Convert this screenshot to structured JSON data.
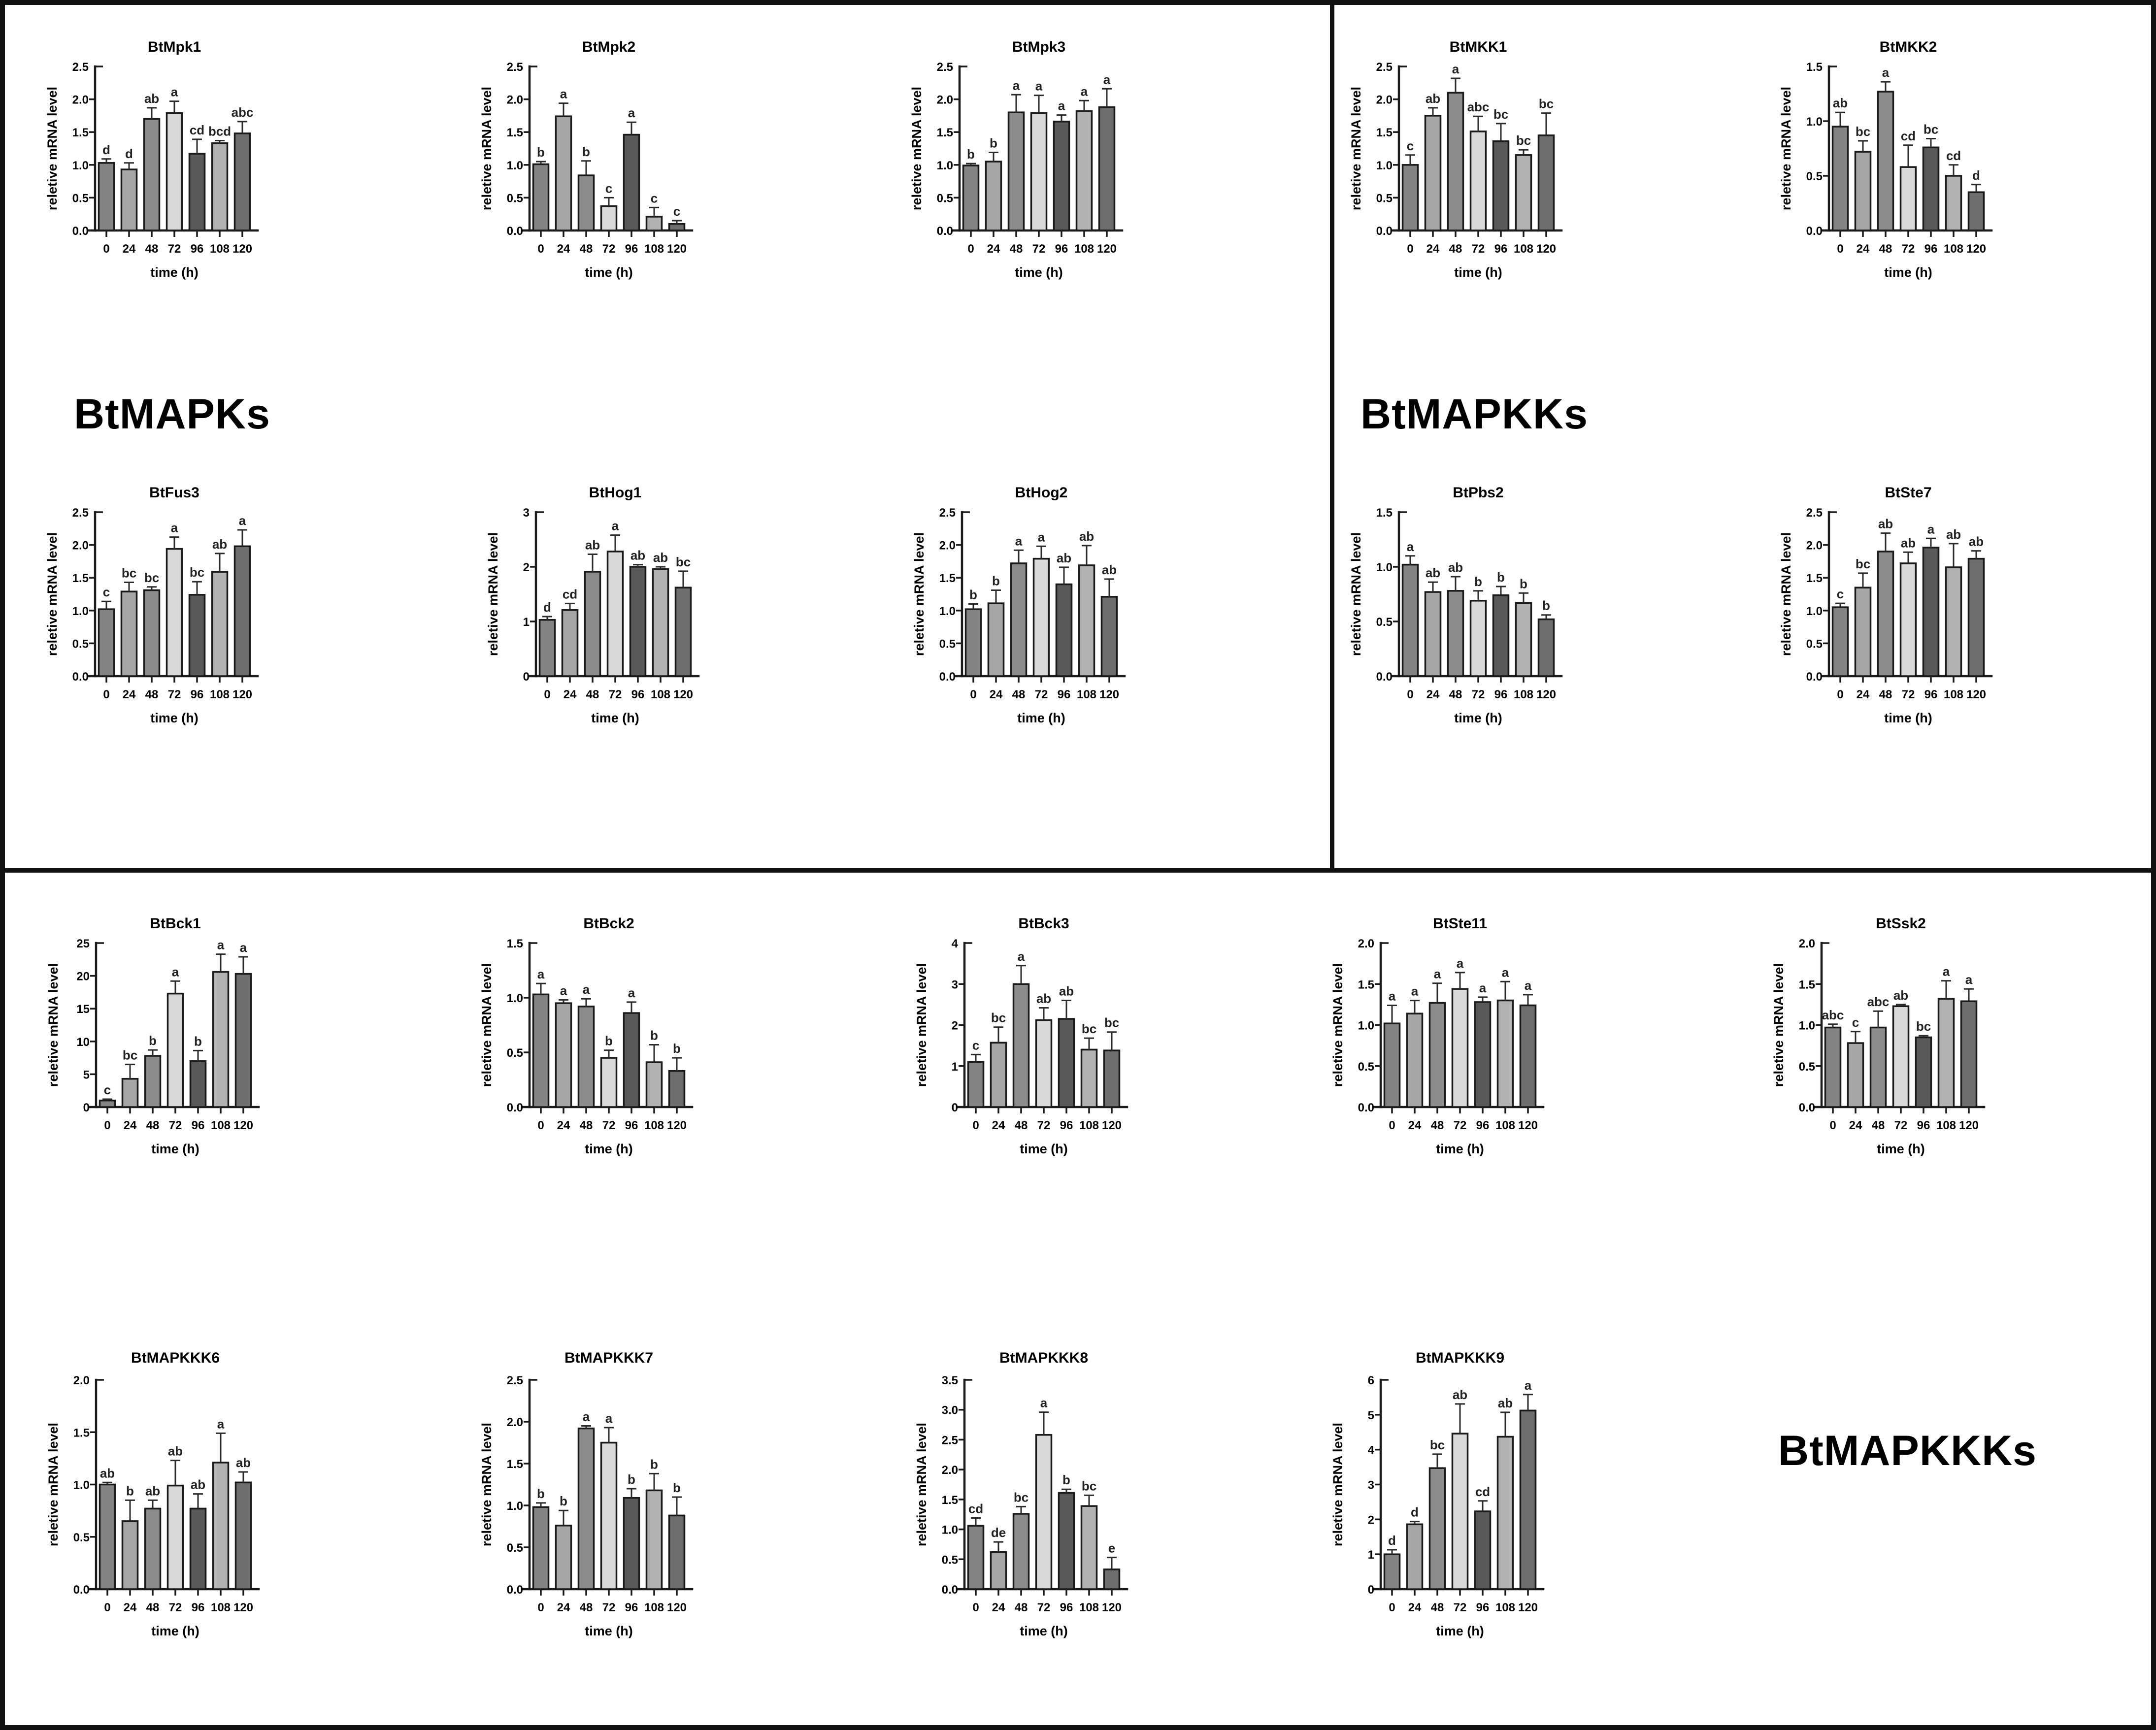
{
  "section_labels": {
    "mapks": "BtMAPKs",
    "mapkks": "BtMAPKKs",
    "mapkkks": "BtMAPKKKs"
  },
  "shared": {
    "xlabel": "time (h)",
    "ylabel": "reletive mRNA level",
    "categories": [
      "0",
      "24",
      "48",
      "72",
      "96",
      "108",
      "120"
    ],
    "bar_colors": [
      "#838383",
      "#a6a6a6",
      "#8c8c8c",
      "#d9d9d9",
      "#595959",
      "#b2b2b2",
      "#6e6e6e"
    ],
    "bar_outline": "#1a1a1a",
    "axis_color": "#1a1a1a",
    "letter_color": "#222222",
    "grid": false,
    "legend": "none"
  },
  "chart_data": [
    {
      "type": "bar",
      "title": "BtMpk1",
      "xlabel": "time (h)",
      "ylabel": "reletive mRNA level",
      "categories": [
        "0",
        "24",
        "48",
        "72",
        "96",
        "108",
        "120"
      ],
      "values": [
        1.03,
        0.93,
        1.7,
        1.79,
        1.17,
        1.33,
        1.48
      ],
      "errors": [
        0.06,
        0.1,
        0.17,
        0.18,
        0.22,
        0.04,
        0.18
      ],
      "sig_letters": [
        "d",
        "d",
        "ab",
        "a",
        "cd",
        "bcd",
        "abc"
      ],
      "ylim": [
        0,
        2.5
      ],
      "ytick_step": 0.5,
      "ytick_decimals": 1
    },
    {
      "type": "bar",
      "title": "BtMpk2",
      "xlabel": "time (h)",
      "ylabel": "reletive mRNA level",
      "categories": [
        "0",
        "24",
        "48",
        "72",
        "96",
        "108",
        "120"
      ],
      "values": [
        1.01,
        1.74,
        0.84,
        0.37,
        1.46,
        0.21,
        0.1
      ],
      "errors": [
        0.04,
        0.2,
        0.22,
        0.13,
        0.19,
        0.14,
        0.05
      ],
      "sig_letters": [
        "b",
        "a",
        "b",
        "c",
        "a",
        "c",
        "c"
      ],
      "ylim": [
        0,
        2.5
      ],
      "ytick_step": 0.5,
      "ytick_decimals": 1
    },
    {
      "type": "bar",
      "title": "BtMpk3",
      "xlabel": "time (h)",
      "ylabel": "reletive mRNA level",
      "categories": [
        "0",
        "24",
        "48",
        "72",
        "96",
        "108",
        "120"
      ],
      "values": [
        0.99,
        1.05,
        1.8,
        1.79,
        1.66,
        1.82,
        1.88
      ],
      "errors": [
        0.03,
        0.14,
        0.27,
        0.27,
        0.1,
        0.16,
        0.28
      ],
      "sig_letters": [
        "b",
        "b",
        "a",
        "a",
        "a",
        "a",
        "a"
      ],
      "ylim": [
        0,
        2.5
      ],
      "ytick_step": 0.5,
      "ytick_decimals": 1
    },
    {
      "type": "bar",
      "title": "BtMKK1",
      "xlabel": "time (h)",
      "ylabel": "reletive mRNA level",
      "categories": [
        "0",
        "24",
        "48",
        "72",
        "96",
        "108",
        "120"
      ],
      "values": [
        1.0,
        1.75,
        2.1,
        1.51,
        1.36,
        1.15,
        1.45
      ],
      "errors": [
        0.15,
        0.12,
        0.22,
        0.23,
        0.27,
        0.08,
        0.34
      ],
      "sig_letters": [
        "c",
        "ab",
        "a",
        "abc",
        "bc",
        "bc",
        "bc"
      ],
      "ylim": [
        0,
        2.5
      ],
      "ytick_step": 0.5,
      "ytick_decimals": 1
    },
    {
      "type": "bar",
      "title": "BtMKK2",
      "xlabel": "time (h)",
      "ylabel": "reletive mRNA level",
      "categories": [
        "0",
        "24",
        "48",
        "72",
        "96",
        "108",
        "120"
      ],
      "values": [
        0.95,
        0.72,
        1.27,
        0.58,
        0.76,
        0.5,
        0.35
      ],
      "errors": [
        0.13,
        0.1,
        0.09,
        0.2,
        0.08,
        0.1,
        0.07
      ],
      "sig_letters": [
        "ab",
        "bc",
        "a",
        "cd",
        "bc",
        "cd",
        "d"
      ],
      "ylim": [
        0,
        1.5
      ],
      "ytick_step": 0.5,
      "ytick_decimals": 1
    },
    {
      "type": "bar",
      "title": "BtFus3",
      "xlabel": "time (h)",
      "ylabel": "reletive mRNA level",
      "categories": [
        "0",
        "24",
        "48",
        "72",
        "96",
        "108",
        "120"
      ],
      "values": [
        1.02,
        1.29,
        1.31,
        1.94,
        1.24,
        1.59,
        1.98
      ],
      "errors": [
        0.12,
        0.14,
        0.05,
        0.18,
        0.2,
        0.28,
        0.25
      ],
      "sig_letters": [
        "c",
        "bc",
        "bc",
        "a",
        "bc",
        "ab",
        "a"
      ],
      "ylim": [
        0,
        2.5
      ],
      "ytick_step": 0.5,
      "ytick_decimals": 1
    },
    {
      "type": "bar",
      "title": "BtHog1",
      "xlabel": "time (h)",
      "ylabel": "reletive mRNA level",
      "categories": [
        "0",
        "24",
        "48",
        "72",
        "96",
        "108",
        "120"
      ],
      "values": [
        1.03,
        1.21,
        1.91,
        2.28,
        2.0,
        1.96,
        1.62
      ],
      "errors": [
        0.06,
        0.12,
        0.32,
        0.3,
        0.04,
        0.04,
        0.3
      ],
      "sig_letters": [
        "d",
        "cd",
        "ab",
        "a",
        "ab",
        "ab",
        "bc"
      ],
      "ylim": [
        0,
        3
      ],
      "ytick_step": 1,
      "ytick_decimals": 0
    },
    {
      "type": "bar",
      "title": "BtHog2",
      "xlabel": "time (h)",
      "ylabel": "reletive mRNA level",
      "categories": [
        "0",
        "24",
        "48",
        "72",
        "96",
        "108",
        "120"
      ],
      "values": [
        1.02,
        1.11,
        1.72,
        1.79,
        1.4,
        1.69,
        1.21
      ],
      "errors": [
        0.08,
        0.2,
        0.2,
        0.19,
        0.26,
        0.3,
        0.27
      ],
      "sig_letters": [
        "b",
        "b",
        "a",
        "a",
        "ab",
        "ab",
        "ab"
      ],
      "ylim": [
        0,
        2.5
      ],
      "ytick_step": 0.5,
      "ytick_decimals": 1
    },
    {
      "type": "bar",
      "title": "BtPbs2",
      "xlabel": "time (h)",
      "ylabel": "reletive mRNA level",
      "categories": [
        "0",
        "24",
        "48",
        "72",
        "96",
        "108",
        "120"
      ],
      "values": [
        1.02,
        0.77,
        0.78,
        0.69,
        0.74,
        0.67,
        0.52
      ],
      "errors": [
        0.08,
        0.09,
        0.13,
        0.09,
        0.08,
        0.09,
        0.04
      ],
      "sig_letters": [
        "a",
        "ab",
        "ab",
        "b",
        "b",
        "b",
        "b"
      ],
      "ylim": [
        0,
        1.5
      ],
      "ytick_step": 0.5,
      "ytick_decimals": 1
    },
    {
      "type": "bar",
      "title": "BtSte7",
      "xlabel": "time (h)",
      "ylabel": "reletive mRNA level",
      "categories": [
        "0",
        "24",
        "48",
        "72",
        "96",
        "108",
        "120"
      ],
      "values": [
        1.05,
        1.35,
        1.9,
        1.72,
        1.96,
        1.66,
        1.79
      ],
      "errors": [
        0.06,
        0.22,
        0.28,
        0.17,
        0.14,
        0.36,
        0.12
      ],
      "sig_letters": [
        "c",
        "bc",
        "ab",
        "ab",
        "a",
        "ab",
        "ab"
      ],
      "ylim": [
        0,
        2.5
      ],
      "ytick_step": 0.5,
      "ytick_decimals": 1
    },
    {
      "type": "bar",
      "title": "BtBck1",
      "xlabel": "time (h)",
      "ylabel": "reletive mRNA level",
      "categories": [
        "0",
        "24",
        "48",
        "72",
        "96",
        "108",
        "120"
      ],
      "values": [
        1.0,
        4.3,
        7.8,
        17.3,
        7.0,
        20.6,
        20.3
      ],
      "errors": [
        0.2,
        2.2,
        0.9,
        1.9,
        1.6,
        2.7,
        2.6
      ],
      "sig_letters": [
        "c",
        "bc",
        "b",
        "a",
        "b",
        "a",
        "a"
      ],
      "ylim": [
        0,
        25
      ],
      "ytick_step": 5,
      "ytick_decimals": 0
    },
    {
      "type": "bar",
      "title": "BtBck2",
      "xlabel": "time (h)",
      "ylabel": "reletive mRNA level",
      "categories": [
        "0",
        "24",
        "48",
        "72",
        "96",
        "108",
        "120"
      ],
      "values": [
        1.03,
        0.95,
        0.92,
        0.45,
        0.86,
        0.41,
        0.33
      ],
      "errors": [
        0.1,
        0.03,
        0.07,
        0.07,
        0.1,
        0.16,
        0.12
      ],
      "sig_letters": [
        "a",
        "a",
        "a",
        "b",
        "a",
        "b",
        "b"
      ],
      "ylim": [
        0,
        1.5
      ],
      "ytick_step": 0.5,
      "ytick_decimals": 1
    },
    {
      "type": "bar",
      "title": "BtBck3",
      "xlabel": "time (h)",
      "ylabel": "reletive mRNA level",
      "categories": [
        "0",
        "24",
        "48",
        "72",
        "96",
        "108",
        "120"
      ],
      "values": [
        1.1,
        1.57,
        3.0,
        2.12,
        2.15,
        1.4,
        1.38
      ],
      "errors": [
        0.18,
        0.38,
        0.45,
        0.3,
        0.45,
        0.28,
        0.45
      ],
      "sig_letters": [
        "c",
        "bc",
        "a",
        "ab",
        "ab",
        "bc",
        "bc"
      ],
      "ylim": [
        0,
        4
      ],
      "ytick_step": 1,
      "ytick_decimals": 0
    },
    {
      "type": "bar",
      "title": "BtSte11",
      "xlabel": "time (h)",
      "ylabel": "reletive mRNA level",
      "categories": [
        "0",
        "24",
        "48",
        "72",
        "96",
        "108",
        "120"
      ],
      "values": [
        1.02,
        1.14,
        1.27,
        1.44,
        1.28,
        1.3,
        1.24
      ],
      "errors": [
        0.22,
        0.16,
        0.24,
        0.2,
        0.06,
        0.23,
        0.13
      ],
      "sig_letters": [
        "a",
        "a",
        "a",
        "a",
        "a",
        "a",
        "a"
      ],
      "ylim": [
        0,
        2
      ],
      "ytick_step": 0.5,
      "ytick_decimals": 1
    },
    {
      "type": "bar",
      "title": "BtSsk2",
      "xlabel": "time (h)",
      "ylabel": "reletive mRNA level",
      "categories": [
        "0",
        "24",
        "48",
        "72",
        "96",
        "108",
        "120"
      ],
      "values": [
        0.97,
        0.78,
        0.97,
        1.23,
        0.85,
        1.32,
        1.29
      ],
      "errors": [
        0.04,
        0.14,
        0.2,
        0.02,
        0.02,
        0.22,
        0.15
      ],
      "sig_letters": [
        "abc",
        "c",
        "abc",
        "ab",
        "bc",
        "a",
        "a"
      ],
      "ylim": [
        0,
        2
      ],
      "ytick_step": 0.5,
      "ytick_decimals": 1
    },
    {
      "type": "bar",
      "title": "BtMAPKKK6",
      "xlabel": "time (h)",
      "ylabel": "reletive mRNA level",
      "categories": [
        "0",
        "24",
        "48",
        "72",
        "96",
        "108",
        "120"
      ],
      "values": [
        1.0,
        0.65,
        0.77,
        0.99,
        0.77,
        1.21,
        1.02
      ],
      "errors": [
        0.02,
        0.2,
        0.08,
        0.24,
        0.14,
        0.28,
        0.1
      ],
      "sig_letters": [
        "ab",
        "b",
        "ab",
        "ab",
        "ab",
        "a",
        "ab"
      ],
      "ylim": [
        0,
        2
      ],
      "ytick_step": 0.5,
      "ytick_decimals": 1
    },
    {
      "type": "bar",
      "title": "BtMAPKKK7",
      "xlabel": "time (h)",
      "ylabel": "reletive mRNA level",
      "categories": [
        "0",
        "24",
        "48",
        "72",
        "96",
        "108",
        "120"
      ],
      "values": [
        0.98,
        0.76,
        1.92,
        1.75,
        1.09,
        1.18,
        0.88
      ],
      "errors": [
        0.05,
        0.18,
        0.03,
        0.18,
        0.11,
        0.2,
        0.22
      ],
      "sig_letters": [
        "b",
        "b",
        "a",
        "a",
        "b",
        "b",
        "b"
      ],
      "ylim": [
        0,
        2.5
      ],
      "ytick_step": 0.5,
      "ytick_decimals": 1
    },
    {
      "type": "bar",
      "title": "BtMAPKKK8",
      "xlabel": "time (h)",
      "ylabel": "reletive mRNA level",
      "categories": [
        "0",
        "24",
        "48",
        "72",
        "96",
        "108",
        "120"
      ],
      "values": [
        1.06,
        0.62,
        1.26,
        2.58,
        1.61,
        1.39,
        0.33
      ],
      "errors": [
        0.13,
        0.17,
        0.12,
        0.38,
        0.06,
        0.18,
        0.2
      ],
      "sig_letters": [
        "cd",
        "de",
        "bc",
        "a",
        "b",
        "bc",
        "e"
      ],
      "ylim": [
        0,
        3.5
      ],
      "ytick_step": 0.5,
      "ytick_decimals": 1
    },
    {
      "type": "bar",
      "title": "BtMAPKKK9",
      "xlabel": "time (h)",
      "ylabel": "reletive mRNA level",
      "categories": [
        "0",
        "24",
        "48",
        "72",
        "96",
        "108",
        "120"
      ],
      "values": [
        1.0,
        1.86,
        3.47,
        4.46,
        2.23,
        4.37,
        5.12
      ],
      "errors": [
        0.13,
        0.08,
        0.4,
        0.85,
        0.3,
        0.7,
        0.46
      ],
      "sig_letters": [
        "d",
        "d",
        "bc",
        "ab",
        "cd",
        "ab",
        "a"
      ],
      "ylim": [
        0,
        6
      ],
      "ytick_step": 1,
      "ytick_decimals": 0
    }
  ]
}
